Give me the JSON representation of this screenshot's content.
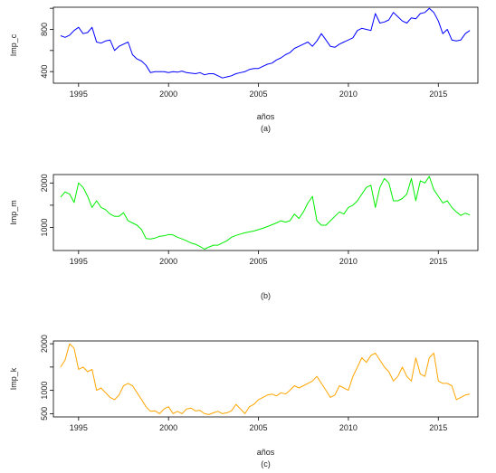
{
  "chart_data": [
    {
      "type": "line",
      "panel_label": "(a)",
      "xlabel": "años",
      "ylabel": "Imp_c",
      "color": "#0000ff",
      "xlim": [
        1993.6,
        2017.2
      ],
      "ylim": [
        290,
        1010
      ],
      "xticks": [
        1995,
        2000,
        2005,
        2010,
        2015
      ],
      "yticks": [
        400,
        600,
        800,
        1000
      ],
      "ytick_labels": [
        "400",
        "",
        "800",
        ""
      ],
      "series": [
        {
          "x": [
            1994.0,
            1994.25,
            1994.5,
            1994.75,
            1995.0,
            1995.25,
            1995.5,
            1995.75,
            1996.0,
            1996.25,
            1996.5,
            1996.75,
            1997.0,
            1997.25,
            1997.5,
            1997.75,
            1998.0,
            1998.25,
            1998.5,
            1998.75,
            1999.0,
            1999.25,
            1999.5,
            1999.75,
            2000.0,
            2000.25,
            2000.5,
            2000.75,
            2001.0,
            2001.25,
            2001.5,
            2001.75,
            2002.0,
            2002.25,
            2002.5,
            2002.75,
            2003.0,
            2003.25,
            2003.5,
            2003.75,
            2004.0,
            2004.25,
            2004.5,
            2004.75,
            2005.0,
            2005.25,
            2005.5,
            2005.75,
            2006.0,
            2006.25,
            2006.5,
            2006.75,
            2007.0,
            2007.25,
            2007.5,
            2007.75,
            2008.0,
            2008.25,
            2008.5,
            2008.75,
            2009.0,
            2009.25,
            2009.5,
            2009.75,
            2010.0,
            2010.25,
            2010.5,
            2010.75,
            2011.0,
            2011.25,
            2011.5,
            2011.75,
            2012.0,
            2012.25,
            2012.5,
            2012.75,
            2013.0,
            2013.25,
            2013.5,
            2013.75,
            2014.0,
            2014.25,
            2014.5,
            2014.75,
            2015.0,
            2015.25,
            2015.5,
            2015.75,
            2016.0,
            2016.25,
            2016.5,
            2016.75
          ],
          "y": [
            740,
            725,
            745,
            790,
            820,
            760,
            770,
            820,
            680,
            670,
            690,
            700,
            600,
            640,
            660,
            680,
            560,
            520,
            500,
            460,
            390,
            400,
            400,
            400,
            390,
            400,
            395,
            405,
            390,
            385,
            380,
            390,
            370,
            380,
            380,
            360,
            340,
            350,
            360,
            380,
            390,
            400,
            420,
            430,
            430,
            450,
            470,
            480,
            510,
            530,
            560,
            580,
            620,
            640,
            660,
            680,
            640,
            690,
            760,
            700,
            640,
            630,
            660,
            680,
            700,
            720,
            790,
            810,
            800,
            790,
            950,
            860,
            870,
            890,
            960,
            920,
            880,
            860,
            910,
            900,
            950,
            960,
            1000,
            960,
            880,
            760,
            800,
            700,
            690,
            700,
            760,
            790
          ]
        }
      ]
    },
    {
      "type": "line",
      "panel_label": "(b)",
      "xlabel": "",
      "ylabel": "Imp_m",
      "color": "#00ee00",
      "xlim": [
        1993.6,
        2017.2
      ],
      "ylim": [
        480,
        2190
      ],
      "xticks": [
        1995,
        2000,
        2005,
        2010,
        2015
      ],
      "yticks": [
        1000,
        1500,
        2000
      ],
      "ytick_labels": [
        "1000",
        "",
        "2000"
      ],
      "series": [
        {
          "x": [
            1994.0,
            1994.25,
            1994.5,
            1994.75,
            1995.0,
            1995.25,
            1995.5,
            1995.75,
            1996.0,
            1996.25,
            1996.5,
            1996.75,
            1997.0,
            1997.25,
            1997.5,
            1997.75,
            1998.0,
            1998.25,
            1998.5,
            1998.75,
            1999.0,
            1999.25,
            1999.5,
            1999.75,
            2000.0,
            2000.25,
            2000.5,
            2000.75,
            2001.0,
            2001.25,
            2001.5,
            2001.75,
            2002.0,
            2002.25,
            2002.5,
            2002.75,
            2003.0,
            2003.25,
            2003.5,
            2003.75,
            2004.0,
            2004.25,
            2004.5,
            2004.75,
            2005.0,
            2005.25,
            2005.5,
            2005.75,
            2006.0,
            2006.25,
            2006.5,
            2006.75,
            2007.0,
            2007.25,
            2007.5,
            2007.75,
            2008.0,
            2008.25,
            2008.5,
            2008.75,
            2009.0,
            2009.25,
            2009.5,
            2009.75,
            2010.0,
            2010.25,
            2010.5,
            2010.75,
            2011.0,
            2011.25,
            2011.5,
            2011.75,
            2012.0,
            2012.25,
            2012.5,
            2012.75,
            2013.0,
            2013.25,
            2013.5,
            2013.75,
            2014.0,
            2014.25,
            2014.5,
            2014.75,
            2015.0,
            2015.25,
            2015.5,
            2015.75,
            2016.0,
            2016.25,
            2016.5,
            2016.75
          ],
          "y": [
            1680,
            1800,
            1750,
            1560,
            2000,
            1900,
            1700,
            1450,
            1600,
            1450,
            1400,
            1300,
            1250,
            1250,
            1330,
            1150,
            1100,
            1050,
            950,
            750,
            740,
            760,
            800,
            810,
            840,
            830,
            780,
            740,
            700,
            650,
            620,
            570,
            510,
            560,
            600,
            600,
            650,
            700,
            780,
            820,
            850,
            880,
            900,
            920,
            950,
            980,
            1020,
            1060,
            1100,
            1150,
            1120,
            1150,
            1300,
            1200,
            1350,
            1550,
            1700,
            1150,
            1050,
            1050,
            1150,
            1250,
            1350,
            1300,
            1450,
            1500,
            1600,
            1750,
            1900,
            1950,
            1450,
            1900,
            2100,
            2000,
            1600,
            1600,
            1650,
            1750,
            2100,
            1600,
            2050,
            2000,
            2150,
            1850,
            1700,
            1550,
            1600,
            1450,
            1350,
            1270,
            1320,
            1280
          ]
        }
      ]
    },
    {
      "type": "line",
      "panel_label": "(c)",
      "xlabel": "años",
      "ylabel": "Imp_k",
      "color": "#ffa500",
      "xlim": [
        1993.6,
        2017.2
      ],
      "ylim": [
        430,
        2060
      ],
      "xticks": [
        1995,
        2000,
        2005,
        2010,
        2015
      ],
      "yticks": [
        500,
        1000,
        1500,
        2000
      ],
      "ytick_labels": [
        "500",
        "1000",
        "",
        "2000"
      ],
      "series": [
        {
          "x": [
            1994.0,
            1994.25,
            1994.5,
            1994.75,
            1995.0,
            1995.25,
            1995.5,
            1995.75,
            1996.0,
            1996.25,
            1996.5,
            1996.75,
            1997.0,
            1997.25,
            1997.5,
            1997.75,
            1998.0,
            1998.25,
            1998.5,
            1998.75,
            1999.0,
            1999.25,
            1999.5,
            1999.75,
            2000.0,
            2000.25,
            2000.5,
            2000.75,
            2001.0,
            2001.25,
            2001.5,
            2001.75,
            2002.0,
            2002.25,
            2002.5,
            2002.75,
            2003.0,
            2003.25,
            2003.5,
            2003.75,
            2004.0,
            2004.25,
            2004.5,
            2004.75,
            2005.0,
            2005.25,
            2005.5,
            2005.75,
            2006.0,
            2006.25,
            2006.5,
            2006.75,
            2007.0,
            2007.25,
            2007.5,
            2007.75,
            2008.0,
            2008.25,
            2008.5,
            2008.75,
            2009.0,
            2009.25,
            2009.5,
            2009.75,
            2010.0,
            2010.25,
            2010.5,
            2010.75,
            2011.0,
            2011.25,
            2011.5,
            2011.75,
            2012.0,
            2012.25,
            2012.5,
            2012.75,
            2013.0,
            2013.25,
            2013.5,
            2013.75,
            2014.0,
            2014.25,
            2014.5,
            2014.75,
            2015.0,
            2015.25,
            2015.5,
            2015.75,
            2016.0,
            2016.25,
            2016.5,
            2016.75
          ],
          "y": [
            1500,
            1650,
            2000,
            1900,
            1450,
            1500,
            1400,
            1450,
            1000,
            1050,
            950,
            850,
            800,
            900,
            1100,
            1150,
            1100,
            950,
            800,
            650,
            550,
            560,
            500,
            600,
            650,
            500,
            550,
            500,
            600,
            620,
            560,
            570,
            500,
            480,
            520,
            550,
            500,
            520,
            560,
            700,
            600,
            500,
            650,
            700,
            800,
            850,
            900,
            920,
            880,
            950,
            920,
            1000,
            1100,
            1050,
            1100,
            1150,
            1200,
            1300,
            1150,
            1000,
            850,
            900,
            1100,
            1050,
            1000,
            1300,
            1500,
            1700,
            1600,
            1750,
            1800,
            1650,
            1500,
            1400,
            1200,
            1300,
            1500,
            1300,
            1200,
            1700,
            1350,
            1300,
            1700,
            1800,
            1200,
            1150,
            1150,
            1100,
            800,
            850,
            900,
            920
          ]
        }
      ]
    }
  ]
}
